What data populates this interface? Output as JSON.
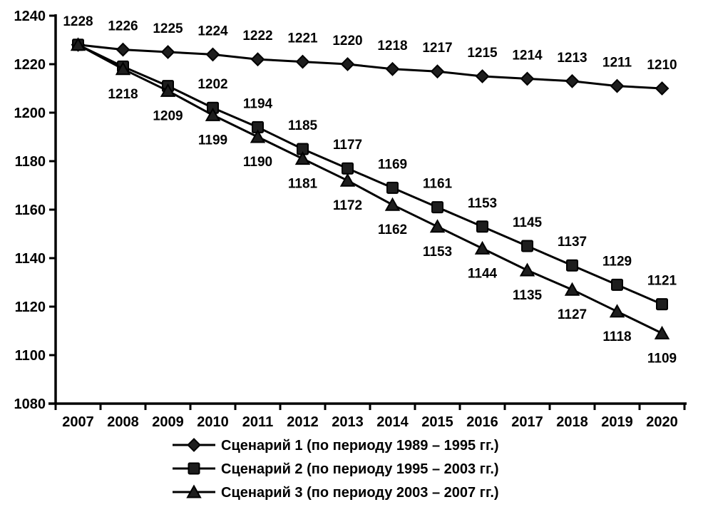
{
  "chart_data": {
    "type": "line",
    "title": "",
    "xlabel": "",
    "ylabel": "",
    "grid": false,
    "legend_position": "bottom",
    "background_color": "#ffffff",
    "line_color": "#000000",
    "marker_fill": "#1e1e1e",
    "ylim": [
      1080,
      1240
    ],
    "yticks": [
      1080,
      1100,
      1120,
      1140,
      1160,
      1180,
      1200,
      1220,
      1240
    ],
    "categories": [
      "2007",
      "2008",
      "2009",
      "2010",
      "2011",
      "2012",
      "2013",
      "2014",
      "2015",
      "2016",
      "2017",
      "2018",
      "2019",
      "2020"
    ],
    "series": [
      {
        "name": "Сценарий 1 (по периоду 1989 – 1995 гг.)",
        "marker": "diamond",
        "label_position": "above",
        "values": [
          1228,
          1226,
          1225,
          1224,
          1222,
          1221,
          1220,
          1218,
          1217,
          1215,
          1214,
          1213,
          1211,
          1210
        ],
        "labels": [
          1228,
          1226,
          1225,
          1224,
          1222,
          1221,
          1220,
          1218,
          1217,
          1215,
          1214,
          1213,
          1211,
          1210
        ]
      },
      {
        "name": "Сценарий 2 (по периоду 1995 – 2003 гг.)",
        "marker": "square",
        "label_position": "above",
        "values": [
          1228,
          1219,
          1211,
          1202,
          1194,
          1185,
          1177,
          1169,
          1161,
          1153,
          1145,
          1137,
          1129,
          1121
        ],
        "labels": [
          null,
          null,
          null,
          1202,
          1194,
          1185,
          1177,
          1169,
          1161,
          1153,
          1145,
          1137,
          1129,
          1121
        ]
      },
      {
        "name": "Сценарий 3 (по периоду 2003 – 2007 гг.)",
        "marker": "triangle",
        "label_position": "below",
        "values": [
          1228,
          1218,
          1209,
          1199,
          1190,
          1181,
          1172,
          1162,
          1153,
          1144,
          1135,
          1127,
          1118,
          1109
        ],
        "labels": [
          null,
          1218,
          1209,
          1199,
          1190,
          1181,
          1172,
          1162,
          1153,
          1144,
          1135,
          1127,
          1118,
          1109
        ]
      }
    ]
  }
}
